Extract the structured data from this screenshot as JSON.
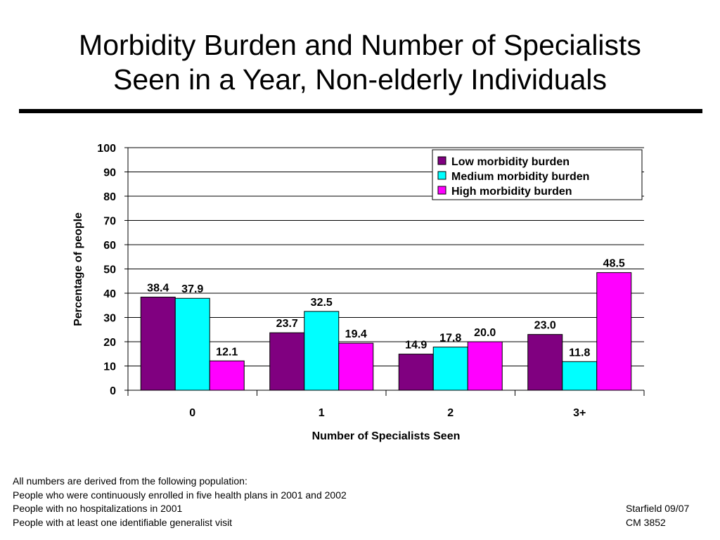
{
  "slide": {
    "title_line1": "Morbidity Burden and Number of Specialists",
    "title_line2": "Seen in a Year, Non-elderly Individuals"
  },
  "chart_data": {
    "type": "bar",
    "categories": [
      "0",
      "1",
      "2",
      "3+"
    ],
    "series": [
      {
        "name": "Low morbidity burden",
        "values": [
          38.4,
          23.7,
          14.9,
          23.0
        ],
        "color": "#800080"
      },
      {
        "name": "Medium morbidity burden",
        "values": [
          37.9,
          32.5,
          17.8,
          11.8
        ],
        "color": "#00ffff"
      },
      {
        "name": "High morbidity burden",
        "values": [
          12.1,
          19.4,
          20.0,
          48.5
        ],
        "color": "#ff00ff"
      }
    ],
    "data_labels": [
      [
        "38.4",
        "23.7",
        "14.9",
        "23.0"
      ],
      [
        "37.9",
        "32.5",
        "17.8",
        "11.8"
      ],
      [
        "12.1",
        "19.4",
        "20.0",
        "48.5"
      ]
    ],
    "title": "",
    "xlabel": "Number of Specialists Seen",
    "ylabel": "Percentage of people",
    "ylim": [
      0,
      100
    ],
    "yticks": [
      0,
      10,
      20,
      30,
      40,
      50,
      60,
      70,
      80,
      90,
      100
    ],
    "grid": true,
    "legend_position": "top-right"
  },
  "footnotes": [
    "All numbers are derived from the following population:",
    "People who were continuously enrolled in five health plans in 2001 and 2002",
    "People with no hospitalizations in 2001",
    "People with at least one identifiable generalist visit"
  ],
  "credits": [
    "Starfield 09/07",
    "CM 3852"
  ]
}
